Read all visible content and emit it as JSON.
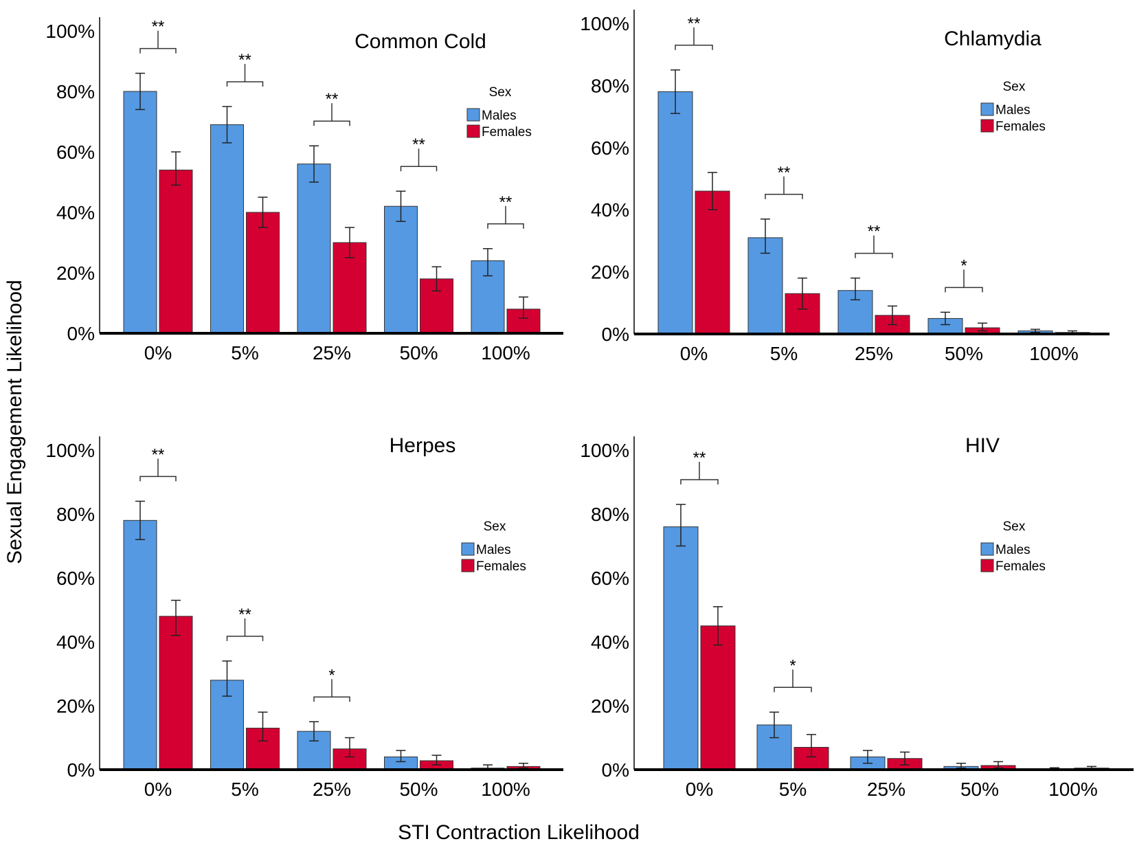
{
  "figure": {
    "ylabel": "Sexual Engagement Likelihood",
    "xlabel": "STI Contraction Likelihood",
    "colors": {
      "males": "#5599e2",
      "females": "#d50032",
      "axis": "#000000",
      "error": "#222222"
    }
  },
  "chart_data": [
    {
      "type": "bar",
      "title": "Common Cold",
      "categories": [
        "0%",
        "5%",
        "25%",
        "50%",
        "100%"
      ],
      "series": [
        {
          "name": "Males",
          "values": [
            80,
            69,
            56,
            42,
            24
          ],
          "err_low": [
            74,
            63,
            50,
            37,
            19
          ],
          "err_high": [
            86,
            75,
            62,
            47,
            28
          ]
        },
        {
          "name": "Females",
          "values": [
            54,
            40,
            30,
            18,
            8
          ],
          "err_low": [
            49,
            35,
            25,
            14,
            5
          ],
          "err_high": [
            60,
            45,
            35,
            22,
            12
          ]
        }
      ],
      "significance": [
        "**",
        "**",
        "**",
        "**",
        "**"
      ],
      "yticks": [
        "0%",
        "20%",
        "40%",
        "60%",
        "80%",
        "100%"
      ],
      "ylim": [
        0,
        100
      ],
      "legend": {
        "title": "Sex",
        "items": [
          "Males",
          "Females"
        ],
        "position": "right"
      }
    },
    {
      "type": "bar",
      "title": "Chlamydia",
      "categories": [
        "0%",
        "5%",
        "25%",
        "50%",
        "100%"
      ],
      "series": [
        {
          "name": "Males",
          "values": [
            78,
            31,
            14,
            5,
            1
          ],
          "err_low": [
            71,
            26,
            11,
            3,
            0.5
          ],
          "err_high": [
            85,
            37,
            18,
            7,
            1.5
          ]
        },
        {
          "name": "Females",
          "values": [
            46,
            13,
            6,
            2,
            0.5
          ],
          "err_low": [
            40,
            8,
            3,
            1,
            0.2
          ],
          "err_high": [
            52,
            18,
            9,
            3.5,
            1
          ]
        }
      ],
      "significance": [
        "**",
        "**",
        "**",
        "*",
        ""
      ],
      "yticks": [
        "0%",
        "20%",
        "40%",
        "60%",
        "80%",
        "100%"
      ],
      "ylim": [
        0,
        100
      ],
      "legend": {
        "title": "Sex",
        "items": [
          "Males",
          "Females"
        ],
        "position": "right"
      }
    },
    {
      "type": "bar",
      "title": "Herpes",
      "categories": [
        "0%",
        "5%",
        "25%",
        "50%",
        "100%"
      ],
      "series": [
        {
          "name": "Males",
          "values": [
            78,
            28,
            12,
            4,
            0.5
          ],
          "err_low": [
            72,
            23,
            9,
            2.5,
            0.2
          ],
          "err_high": [
            84,
            34,
            15,
            6,
            1.5
          ]
        },
        {
          "name": "Females",
          "values": [
            48,
            13,
            6.5,
            2.8,
            1
          ],
          "err_low": [
            42,
            9,
            4,
            1.5,
            0.5
          ],
          "err_high": [
            53,
            18,
            10,
            4.5,
            2
          ]
        }
      ],
      "significance": [
        "**",
        "**",
        "*",
        "",
        ""
      ],
      "yticks": [
        "0%",
        "20%",
        "40%",
        "60%",
        "80%",
        "100%"
      ],
      "ylim": [
        0,
        100
      ],
      "legend": {
        "title": "Sex",
        "items": [
          "Males",
          "Females"
        ],
        "position": "right"
      }
    },
    {
      "type": "bar",
      "title": "HIV",
      "categories": [
        "0%",
        "5%",
        "25%",
        "50%",
        "100%"
      ],
      "series": [
        {
          "name": "Males",
          "values": [
            76,
            14,
            4,
            1,
            0.2
          ],
          "err_low": [
            70,
            10,
            2,
            0.5,
            0.1
          ],
          "err_high": [
            83,
            18,
            6,
            2,
            0.6
          ]
        },
        {
          "name": "Females",
          "values": [
            45,
            7,
            3.5,
            1.3,
            0.5
          ],
          "err_low": [
            39,
            4,
            1.5,
            0.5,
            0.2
          ],
          "err_high": [
            51,
            11,
            5.5,
            2.5,
            1
          ]
        }
      ],
      "significance": [
        "**",
        "*",
        "",
        "",
        ""
      ],
      "yticks": [
        "0%",
        "20%",
        "40%",
        "60%",
        "80%",
        "100%"
      ],
      "ylim": [
        0,
        100
      ],
      "legend": {
        "title": "Sex",
        "items": [
          "Males",
          "Females"
        ],
        "position": "right"
      }
    }
  ]
}
